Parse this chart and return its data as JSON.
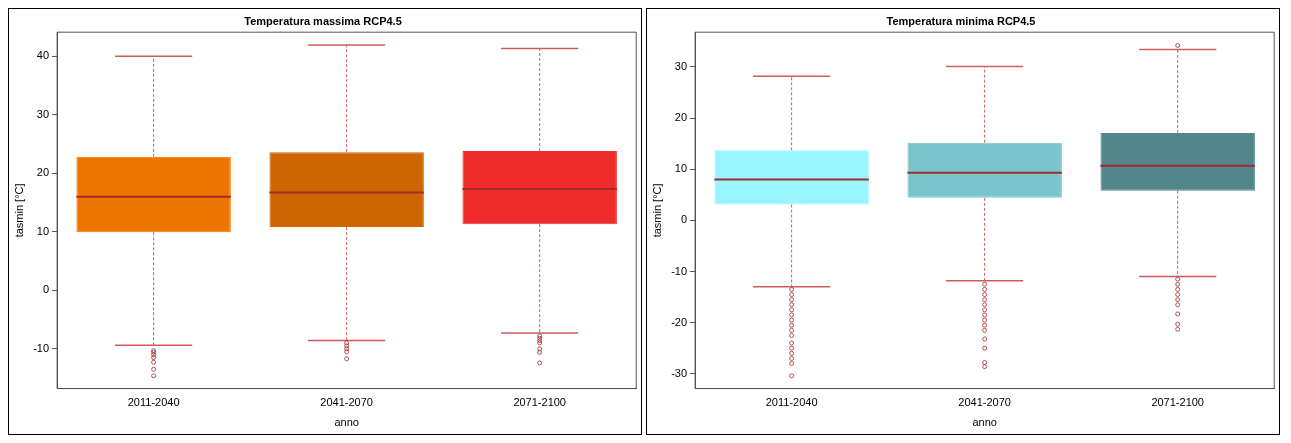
{
  "chart_data": [
    {
      "type": "box",
      "title": "Temperatura massima RCP4.5",
      "xlabel": "anno",
      "ylabel": "tasmin [°C]",
      "categories": [
        "2011-2040",
        "2041-2070",
        "2071-2100"
      ],
      "colors": [
        "#ee7600",
        "#cd6600",
        "#ee2c2c"
      ],
      "boxes": [
        {
          "low": -9.4,
          "q1": 9.9,
          "median": 16.0,
          "q3": 22.8,
          "high": 40.0,
          "outliers": [
            -10.3,
            -10.6,
            -11,
            -11.5,
            -12.3,
            -13.5,
            -14.6
          ]
        },
        {
          "low": -8.6,
          "q1": 10.8,
          "median": 16.7,
          "q3": 23.6,
          "high": 41.9,
          "outliers": [
            -9,
            -9.5,
            -10,
            -10.5,
            -11.7
          ]
        },
        {
          "low": -7.3,
          "q1": 11.3,
          "median": 17.3,
          "q3": 23.8,
          "high": 41.3,
          "outliers": [
            -7.8,
            -8.2,
            -8.6,
            -9,
            -10,
            -10.6,
            -12.4
          ]
        }
      ],
      "ylim": [
        -16.8,
        44.1
      ],
      "yticks": [
        -10,
        0,
        10,
        20,
        30,
        40
      ],
      "grid": false
    },
    {
      "type": "box",
      "title": "Temperatura minima RCP4.5",
      "xlabel": "anno",
      "ylabel": "tasmin [°C]",
      "categories": [
        "2011-2040",
        "2041-2070",
        "2071-2100"
      ],
      "colors": [
        "#98f5ff",
        "#7ac5cd",
        "#53868b"
      ],
      "boxes": [
        {
          "low": -13.0,
          "q1": 3.1,
          "median": 8.0,
          "q3": 13.7,
          "high": 28.2,
          "outliers": [
            -13.5,
            -14.5,
            -15.5,
            -16.5,
            -17.5,
            -18.5,
            -19.5,
            -20.5,
            -21.5,
            -22.5,
            -24,
            -25,
            -26,
            -27,
            -28,
            -30.4
          ]
        },
        {
          "low": -11.8,
          "q1": 4.4,
          "median": 9.3,
          "q3": 15.2,
          "high": 30.1,
          "outliers": [
            -12.5,
            -13.5,
            -14.5,
            -15.5,
            -16.5,
            -17.5,
            -18.5,
            -19.5,
            -20.5,
            -21.5,
            -23.2,
            -25,
            -27.8,
            -28.6
          ]
        },
        {
          "low": -11.0,
          "q1": 5.8,
          "median": 10.7,
          "q3": 17.1,
          "high": 33.4,
          "outliers": [
            34.2,
            -11.5,
            -12.5,
            -13.5,
            -14.5,
            -15.5,
            -16.5,
            -18.3,
            -20.3,
            -21.3
          ]
        }
      ],
      "ylim": [
        -32.9,
        36.8
      ],
      "yticks": [
        -30,
        -20,
        -10,
        0,
        10,
        20,
        30
      ],
      "grid": false
    }
  ]
}
